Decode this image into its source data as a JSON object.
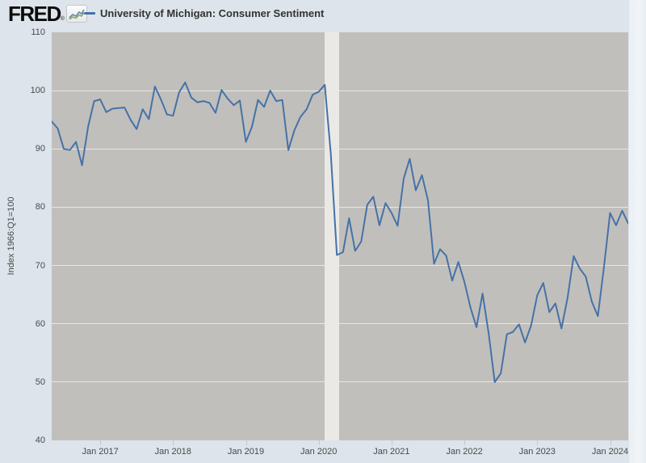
{
  "header": {
    "logo_text": "FRED",
    "logo_registered_mark": "®",
    "logo_badge_icon": "sparkline-chart-icon",
    "legend": {
      "swatch_color": "#4572a7",
      "label": "University of Michigan: Consumer Sentiment"
    }
  },
  "colors": {
    "page_background": "#dde4eb",
    "plot_background": "#c1bfbc",
    "gridline": "#e9e7e3",
    "recession_band": "#eae9e6",
    "series_line": "#4572a7",
    "axis_text": "#4a4a4a",
    "legend_text": "#333333"
  },
  "y_axis": {
    "title": "Index 1966:Q1=100",
    "tick_labels": [
      110,
      100,
      90,
      80,
      70,
      60,
      50,
      40
    ]
  },
  "x_axis": {
    "ticks": [
      {
        "label": "Jan 2017",
        "month_index": 8
      },
      {
        "label": "Jan 2018",
        "month_index": 20
      },
      {
        "label": "Jan 2019",
        "month_index": 32
      },
      {
        "label": "Jan 2020",
        "month_index": 44
      },
      {
        "label": "Jan 2021",
        "month_index": 56
      },
      {
        "label": "Jan 2022",
        "month_index": 68
      },
      {
        "label": "Jan 2023",
        "month_index": 80
      },
      {
        "label": "Jan 2024",
        "month_index": 92
      }
    ]
  },
  "chart_data": {
    "type": "line",
    "title": "University of Michigan: Consumer Sentiment",
    "ylabel": "Index 1966:Q1=100",
    "ylim": [
      40,
      110
    ],
    "grid": "horizontal",
    "legend_position": "top-left",
    "x_range": {
      "start": "2016-05",
      "end": "2024-04",
      "frequency": "monthly"
    },
    "series": [
      {
        "name": "University of Michigan: Consumer Sentiment",
        "color": "#4572a7",
        "values": [
          94.7,
          93.5,
          90.0,
          89.8,
          91.2,
          87.2,
          93.8,
          98.2,
          98.5,
          96.3,
          96.9,
          97.0,
          97.1,
          95.0,
          93.4,
          96.8,
          95.1,
          100.7,
          98.5,
          95.9,
          95.7,
          99.7,
          101.4,
          98.8,
          98.0,
          98.2,
          97.9,
          96.2,
          100.1,
          98.6,
          97.5,
          98.3,
          91.2,
          93.8,
          98.4,
          97.2,
          100.0,
          98.2,
          98.4,
          89.8,
          93.2,
          95.5,
          96.8,
          99.3,
          99.8,
          101.0,
          89.1,
          71.8,
          72.3,
          78.1,
          72.5,
          74.1,
          80.4,
          81.8,
          76.9,
          80.7,
          79.0,
          76.8,
          84.9,
          88.3,
          82.9,
          85.5,
          81.2,
          70.3,
          72.8,
          71.7,
          67.4,
          70.6,
          67.2,
          62.8,
          59.4,
          65.2,
          58.4,
          50.0,
          51.5,
          58.2,
          58.6,
          59.9,
          56.8,
          59.7,
          64.9,
          67.0,
          62.0,
          63.5,
          59.2,
          64.4,
          71.6,
          69.5,
          68.1,
          63.8,
          61.3,
          69.7,
          79.0,
          76.9,
          79.4,
          77.2
        ]
      }
    ],
    "recession_bands": [
      {
        "from": "2020-02",
        "to": "2020-04",
        "from_month_index": 45,
        "to_month_index": 47.4
      }
    ]
  }
}
